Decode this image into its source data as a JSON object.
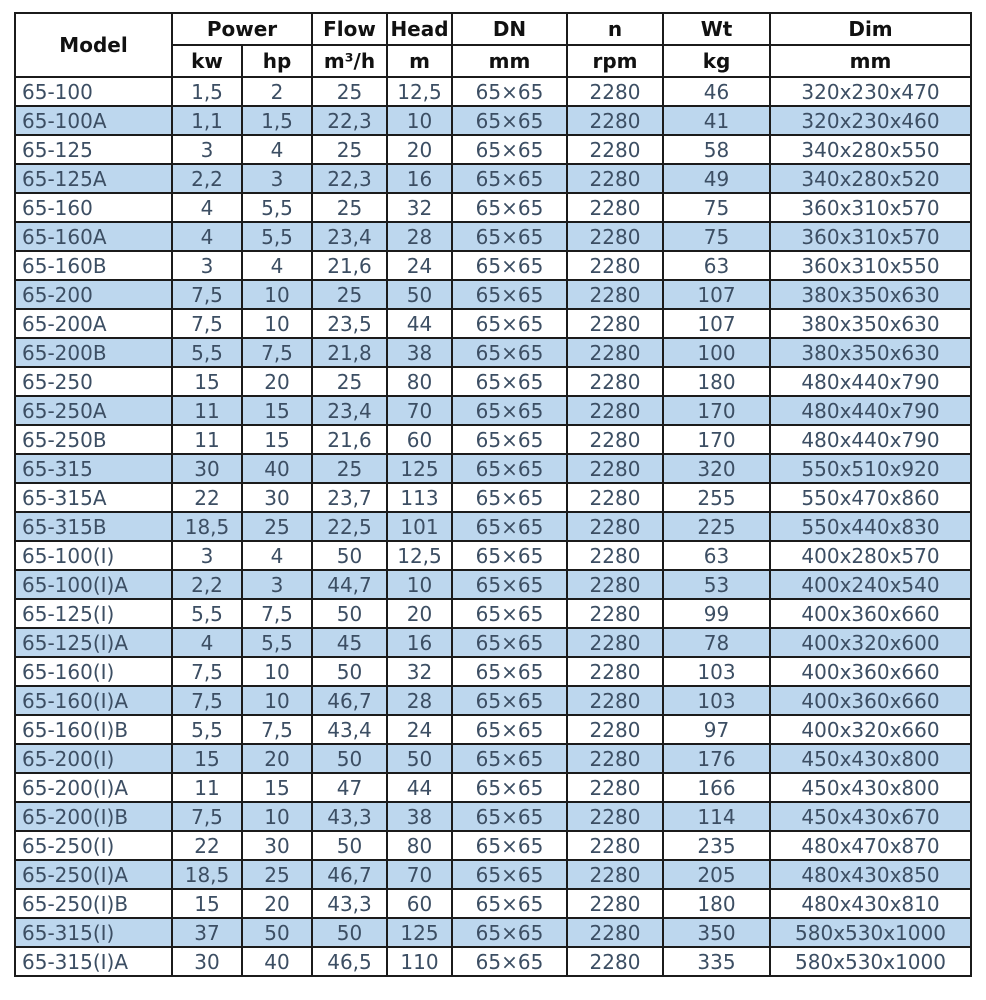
{
  "table": {
    "header": {
      "model": "Model",
      "power": "Power",
      "power_kw": "kw",
      "power_hp": "hp",
      "flow": "Flow",
      "flow_unit": "m³/h",
      "head": "Head",
      "head_unit": "m",
      "dn": "DN",
      "dn_unit": "mm",
      "n": "n",
      "n_unit": "rpm",
      "wt": "Wt",
      "wt_unit": "kg",
      "dim": "Dim",
      "dim_unit": "mm"
    },
    "rows": [
      [
        "65-100",
        "1,5",
        "2",
        "25",
        "12,5",
        "65×65",
        "2280",
        "46",
        "320x230x470"
      ],
      [
        "65-100A",
        "1,1",
        "1,5",
        "22,3",
        "10",
        "65×65",
        "2280",
        "41",
        "320x230x460"
      ],
      [
        "65-125",
        "3",
        "4",
        "25",
        "20",
        "65×65",
        "2280",
        "58",
        "340x280x550"
      ],
      [
        "65-125A",
        "2,2",
        "3",
        "22,3",
        "16",
        "65×65",
        "2280",
        "49",
        "340x280x520"
      ],
      [
        "65-160",
        "4",
        "5,5",
        "25",
        "32",
        "65×65",
        "2280",
        "75",
        "360x310x570"
      ],
      [
        "65-160A",
        "4",
        "5,5",
        "23,4",
        "28",
        "65×65",
        "2280",
        "75",
        "360x310x570"
      ],
      [
        "65-160B",
        "3",
        "4",
        "21,6",
        "24",
        "65×65",
        "2280",
        "63",
        "360x310x550"
      ],
      [
        "65-200",
        "7,5",
        "10",
        "25",
        "50",
        "65×65",
        "2280",
        "107",
        "380x350x630"
      ],
      [
        "65-200A",
        "7,5",
        "10",
        "23,5",
        "44",
        "65×65",
        "2280",
        "107",
        "380x350x630"
      ],
      [
        "65-200B",
        "5,5",
        "7,5",
        "21,8",
        "38",
        "65×65",
        "2280",
        "100",
        "380x350x630"
      ],
      [
        "65-250",
        "15",
        "20",
        "25",
        "80",
        "65×65",
        "2280",
        "180",
        "480x440x790"
      ],
      [
        "65-250A",
        "11",
        "15",
        "23,4",
        "70",
        "65×65",
        "2280",
        "170",
        "480x440x790"
      ],
      [
        "65-250B",
        "11",
        "15",
        "21,6",
        "60",
        "65×65",
        "2280",
        "170",
        "480x440x790"
      ],
      [
        "65-315",
        "30",
        "40",
        "25",
        "125",
        "65×65",
        "2280",
        "320",
        "550x510x920"
      ],
      [
        "65-315A",
        "22",
        "30",
        "23,7",
        "113",
        "65×65",
        "2280",
        "255",
        "550x470x860"
      ],
      [
        "65-315B",
        "18,5",
        "25",
        "22,5",
        "101",
        "65×65",
        "2280",
        "225",
        "550x440x830"
      ],
      [
        "65-100(I)",
        "3",
        "4",
        "50",
        "12,5",
        "65×65",
        "2280",
        "63",
        "400x280x570"
      ],
      [
        "65-100(I)A",
        "2,2",
        "3",
        "44,7",
        "10",
        "65×65",
        "2280",
        "53",
        "400x240x540"
      ],
      [
        "65-125(I)",
        "5,5",
        "7,5",
        "50",
        "20",
        "65×65",
        "2280",
        "99",
        "400x360x660"
      ],
      [
        "65-125(I)A",
        "4",
        "5,5",
        "45",
        "16",
        "65×65",
        "2280",
        "78",
        "400x320x600"
      ],
      [
        "65-160(I)",
        "7,5",
        "10",
        "50",
        "32",
        "65×65",
        "2280",
        "103",
        "400x360x660"
      ],
      [
        "65-160(I)A",
        "7,5",
        "10",
        "46,7",
        "28",
        "65×65",
        "2280",
        "103",
        "400x360x660"
      ],
      [
        "65-160(I)B",
        "5,5",
        "7,5",
        "43,4",
        "24",
        "65×65",
        "2280",
        "97",
        "400x320x660"
      ],
      [
        "65-200(I)",
        "15",
        "20",
        "50",
        "50",
        "65×65",
        "2280",
        "176",
        "450x430x800"
      ],
      [
        "65-200(I)A",
        "11",
        "15",
        "47",
        "44",
        "65×65",
        "2280",
        "166",
        "450x430x800"
      ],
      [
        "65-200(I)B",
        "7,5",
        "10",
        "43,3",
        "38",
        "65×65",
        "2280",
        "114",
        "450x430x670"
      ],
      [
        "65-250(I)",
        "22",
        "30",
        "50",
        "80",
        "65×65",
        "2280",
        "235",
        "480x470x870"
      ],
      [
        "65-250(I)A",
        "18,5",
        "25",
        "46,7",
        "70",
        "65×65",
        "2280",
        "205",
        "480x430x850"
      ],
      [
        "65-250(I)B",
        "15",
        "20",
        "43,3",
        "60",
        "65×65",
        "2280",
        "180",
        "480x430x810"
      ],
      [
        "65-315(I)",
        "37",
        "50",
        "50",
        "125",
        "65×65",
        "2280",
        "350",
        "580x530x1000"
      ],
      [
        "65-315(I)A",
        "30",
        "40",
        "46,5",
        "110",
        "65×65",
        "2280",
        "335",
        "580x530x1000"
      ]
    ]
  },
  "colors": {
    "stripe": "#bdd7ee",
    "border": "#1b1b1b",
    "body_text": "#3c4e63",
    "header_text": "#111111",
    "background": "#ffffff"
  }
}
